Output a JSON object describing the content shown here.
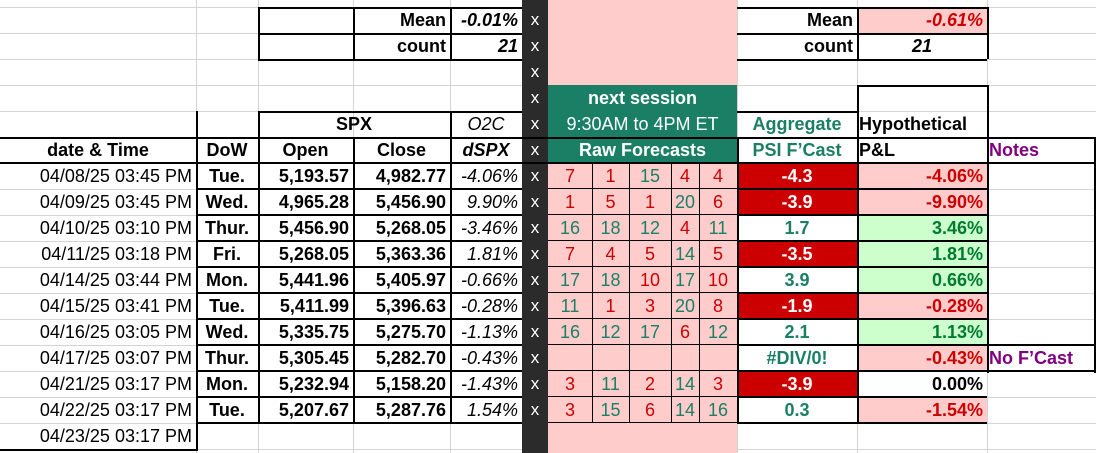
{
  "summary_left": {
    "mean_label": "Mean",
    "mean_value": "-0.01%",
    "count_label": "count",
    "count_value": "21"
  },
  "summary_right": {
    "mean_label": "Mean",
    "mean_value": "-0.61%",
    "count_label": "count",
    "count_value": "21"
  },
  "x_marks": [
    "x",
    "x",
    "x",
    "x",
    "x",
    "x",
    "x",
    "x",
    "x",
    "x",
    "x",
    "x",
    "x",
    "x",
    "x",
    "x"
  ],
  "headers": {
    "spx": "SPX",
    "o2c": "O2C",
    "next_session": "next session",
    "session_hours": "9:30AM to 4PM ET",
    "raw_forecasts": "Raw Forecasts",
    "aggregate": "Aggregate",
    "psi_fcast": "PSI F’Cast",
    "hypothetical": "Hypothetical",
    "pl": "P&L",
    "date_time": "date & Time",
    "dow": "DoW",
    "open": "Open",
    "close": "Close",
    "dspx": "dSPX",
    "notes": "Notes"
  },
  "rows": [
    {
      "date": "04/08/25 03:45 PM",
      "dow": "Tue.",
      "open": "5,193.57",
      "close": "4,982.77",
      "dspx": "-4.06%",
      "f": [
        "7",
        "1",
        "15",
        "4",
        "4"
      ],
      "fc": [
        "red",
        "red",
        "teal",
        "red",
        "red"
      ],
      "psi": "-4.3",
      "psi_style": "neg",
      "pl": "-4.06%",
      "pl_style": "neg",
      "note": ""
    },
    {
      "date": "04/09/25 03:45 PM",
      "dow": "Wed.",
      "open": "4,965.28",
      "close": "5,456.90",
      "dspx": "9.90%",
      "f": [
        "1",
        "5",
        "1",
        "20",
        "6"
      ],
      "fc": [
        "red",
        "red",
        "red",
        "teal",
        "red"
      ],
      "psi": "-3.9",
      "psi_style": "neg",
      "pl": "-9.90%",
      "pl_style": "neg",
      "note": ""
    },
    {
      "date": "04/10/25 03:10 PM",
      "dow": "Thur.",
      "open": "5,456.90",
      "close": "5,268.05",
      "dspx": "-3.46%",
      "f": [
        "16",
        "18",
        "12",
        "4",
        "11"
      ],
      "fc": [
        "teal",
        "teal",
        "teal",
        "red",
        "teal"
      ],
      "psi": "1.7",
      "psi_style": "pos",
      "pl": "3.46%",
      "pl_style": "pos",
      "note": ""
    },
    {
      "date": "04/11/25 03:18 PM",
      "dow": "Fri.",
      "open": "5,268.05",
      "close": "5,363.36",
      "dspx": "1.81%",
      "f": [
        "7",
        "4",
        "5",
        "14",
        "5"
      ],
      "fc": [
        "red",
        "red",
        "red",
        "teal",
        "red"
      ],
      "psi": "-3.5",
      "psi_style": "neg",
      "pl": "1.81%",
      "pl_style": "pos",
      "note": ""
    },
    {
      "date": "04/14/25 03:44 PM",
      "dow": "Mon.",
      "open": "5,441.96",
      "close": "5,405.97",
      "dspx": "-0.66%",
      "f": [
        "17",
        "18",
        "10",
        "17",
        "10"
      ],
      "fc": [
        "teal",
        "teal",
        "red",
        "teal",
        "red"
      ],
      "psi": "3.9",
      "psi_style": "pos",
      "pl": "0.66%",
      "pl_style": "pos",
      "note": ""
    },
    {
      "date": "04/15/25 03:41 PM",
      "dow": "Tue.",
      "open": "5,411.99",
      "close": "5,396.63",
      "dspx": "-0.28%",
      "f": [
        "11",
        "1",
        "3",
        "20",
        "8"
      ],
      "fc": [
        "teal",
        "red",
        "red",
        "teal",
        "red"
      ],
      "psi": "-1.9",
      "psi_style": "neg",
      "pl": "-0.28%",
      "pl_style": "neg",
      "note": ""
    },
    {
      "date": "04/16/25 03:05 PM",
      "dow": "Wed.",
      "open": "5,335.75",
      "close": "5,275.70",
      "dspx": "-1.13%",
      "f": [
        "16",
        "12",
        "17",
        "6",
        "12"
      ],
      "fc": [
        "teal",
        "teal",
        "teal",
        "red",
        "teal"
      ],
      "psi": "2.1",
      "psi_style": "pos",
      "pl": "1.13%",
      "pl_style": "pos",
      "note": ""
    },
    {
      "date": "04/17/25 03:07 PM",
      "dow": "Thur.",
      "open": "5,305.45",
      "close": "5,282.70",
      "dspx": "-0.43%",
      "f": [
        "",
        "",
        "",
        "",
        ""
      ],
      "fc": [
        "teal",
        "teal",
        "teal",
        "teal",
        "teal"
      ],
      "psi": "#DIV/0!",
      "psi_style": "div",
      "pl": "-0.43%",
      "pl_style": "neg",
      "note": "No F’Cast"
    },
    {
      "date": "04/21/25 03:17 PM",
      "dow": "Mon.",
      "open": "5,232.94",
      "close": "5,158.20",
      "dspx": "-1.43%",
      "f": [
        "3",
        "11",
        "2",
        "14",
        "3"
      ],
      "fc": [
        "red",
        "teal",
        "red",
        "teal",
        "red"
      ],
      "psi": "-3.9",
      "psi_style": "neg",
      "pl": "0.00%",
      "pl_style": "zero",
      "note": ""
    },
    {
      "date": "04/22/25 03:17 PM",
      "dow": "Tue.",
      "open": "5,207.67",
      "close": "5,287.76",
      "dspx": "1.54%",
      "f": [
        "3",
        "15",
        "6",
        "14",
        "16"
      ],
      "fc": [
        "red",
        "teal",
        "red",
        "teal",
        "teal"
      ],
      "psi": "0.3",
      "psi_style": "pos",
      "pl": "-1.54%",
      "pl_style": "neg",
      "note": ""
    },
    {
      "date": "04/23/25 03:17 PM",
      "dow": "",
      "open": "",
      "close": "",
      "dspx": "",
      "f": [
        "",
        "",
        "",
        "",
        ""
      ],
      "fc": [
        "teal",
        "teal",
        "teal",
        "teal",
        "teal"
      ],
      "psi": "",
      "psi_style": "none",
      "pl": "",
      "pl_style": "none",
      "note": ""
    }
  ]
}
